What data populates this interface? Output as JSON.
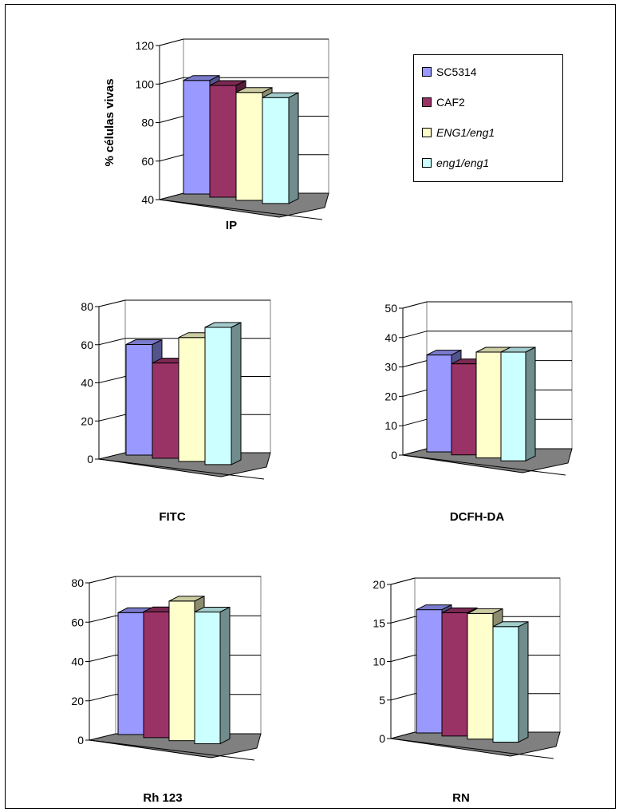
{
  "legend": {
    "items": [
      {
        "label": "SC5314",
        "color": "#9999ff",
        "italic": false
      },
      {
        "label": "CAF2",
        "color": "#993366",
        "italic": false
      },
      {
        "label": "ENG1/eng1",
        "color": "#ffffcc",
        "italic": true
      },
      {
        "label": "eng1/eng1",
        "color": "#ccffff",
        "italic": true
      }
    ]
  },
  "chart_data": [
    {
      "type": "bar",
      "title": "",
      "xlabel": "IP",
      "ylabel": "% células vivas",
      "categories": [
        "IP"
      ],
      "series": [
        {
          "name": "SC5314",
          "values": [
            99
          ]
        },
        {
          "name": "CAF2",
          "values": [
            98
          ]
        },
        {
          "name": "ENG1/eng1",
          "values": [
            96
          ]
        },
        {
          "name": "eng1/eng1",
          "values": [
            95
          ]
        }
      ],
      "ylim": [
        40,
        120
      ],
      "yticks": [
        40,
        60,
        80,
        100,
        120
      ],
      "grid": true
    },
    {
      "type": "bar",
      "title": "",
      "xlabel": "FITC",
      "ylabel": "",
      "categories": [
        "FITC"
      ],
      "series": [
        {
          "name": "SC5314",
          "values": [
            58
          ]
        },
        {
          "name": "CAF2",
          "values": [
            50
          ]
        },
        {
          "name": "ENG1/eng1",
          "values": [
            65
          ]
        },
        {
          "name": "eng1/eng1",
          "values": [
            72
          ]
        }
      ],
      "ylim": [
        0,
        80
      ],
      "yticks": [
        0,
        20,
        40,
        60,
        80
      ],
      "grid": true
    },
    {
      "type": "bar",
      "title": "",
      "xlabel": "DCFH-DA",
      "ylabel": "",
      "categories": [
        "DCFH-DA"
      ],
      "series": [
        {
          "name": "SC5314",
          "values": [
            33
          ]
        },
        {
          "name": "CAF2",
          "values": [
            31
          ]
        },
        {
          "name": "ENG1/eng1",
          "values": [
            36
          ]
        },
        {
          "name": "eng1/eng1",
          "values": [
            37
          ]
        }
      ],
      "ylim": [
        0,
        50
      ],
      "yticks": [
        0,
        10,
        20,
        30,
        40,
        50
      ],
      "grid": true
    },
    {
      "type": "bar",
      "title": "",
      "xlabel": "Rh 123",
      "ylabel": "",
      "categories": [
        "Rh 123"
      ],
      "series": [
        {
          "name": "SC5314",
          "values": [
            62
          ]
        },
        {
          "name": "CAF2",
          "values": [
            64
          ]
        },
        {
          "name": "ENG1/eng1",
          "values": [
            71
          ]
        },
        {
          "name": "eng1/eng1",
          "values": [
            67
          ]
        }
      ],
      "ylim": [
        0,
        80
      ],
      "yticks": [
        0,
        20,
        40,
        60,
        80
      ],
      "grid": true
    },
    {
      "type": "bar",
      "title": "",
      "xlabel": "RN",
      "ylabel": "",
      "categories": [
        "RN"
      ],
      "series": [
        {
          "name": "SC5314",
          "values": [
            16
          ]
        },
        {
          "name": "CAF2",
          "values": [
            16
          ]
        },
        {
          "name": "ENG1/eng1",
          "values": [
            16.3
          ]
        },
        {
          "name": "eng1/eng1",
          "values": [
            15
          ]
        }
      ],
      "ylim": [
        0,
        20
      ],
      "yticks": [
        0,
        5,
        10,
        15,
        20
      ],
      "grid": true
    }
  ]
}
